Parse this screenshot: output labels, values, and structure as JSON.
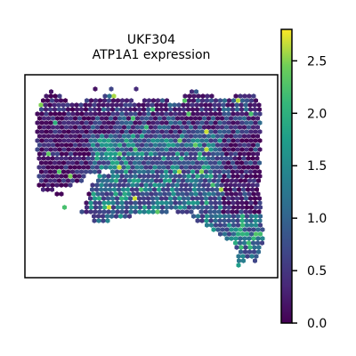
{
  "chart_data": {
    "type": "scatter",
    "title_lines": [
      "UKF304",
      "ATP1A1 expression"
    ],
    "xlabel": "",
    "ylabel": "",
    "axes_ticks": false,
    "grid": false,
    "marker": "hexagon",
    "colormap": "viridis",
    "colors": {
      "low": "#440154",
      "mid": "#21918c",
      "high": "#fde725",
      "frame": "#000000"
    },
    "colorbar": {
      "min": 0.0,
      "max": 2.8,
      "ticks": [
        {
          "value": 0.0,
          "label": "0.0"
        },
        {
          "value": 0.5,
          "label": "0.5"
        },
        {
          "value": 1.0,
          "label": "1.0"
        },
        {
          "value": 1.5,
          "label": "1.5"
        },
        {
          "value": 2.0,
          "label": "2.0"
        },
        {
          "value": 2.5,
          "label": "2.5"
        }
      ]
    },
    "spot_region": {
      "description_rows": "tissue spots on hex grid; each row lists x-span of spots",
      "rows": [
        {
          "y": 100,
          "xs": [
            [
              107,
              107
            ],
            [
              125,
              127
            ],
            [
              153,
              155
            ]
          ]
        },
        {
          "y": 103,
          "xs": [
            [
              55,
              62
            ],
            [
              137,
              139
            ],
            [
              213,
              222
            ]
          ]
        },
        {
          "y": 108,
          "xs": [
            [
              52,
              68
            ],
            [
              118,
              132
            ],
            [
              208,
              238
            ],
            [
              265,
              285
            ]
          ]
        },
        {
          "y": 113,
          "xs": [
            [
              46,
              74
            ],
            [
              95,
              150
            ],
            [
              160,
              190
            ],
            [
              205,
              290
            ]
          ]
        },
        {
          "y": 118,
          "xs": [
            [
              46,
              295
            ]
          ]
        },
        {
          "y": 123,
          "xs": [
            [
              44,
              293
            ]
          ]
        },
        {
          "y": 128,
          "xs": [
            [
              42,
              293
            ]
          ]
        },
        {
          "y": 133,
          "xs": [
            [
              42,
              293
            ]
          ]
        },
        {
          "y": 138,
          "xs": [
            [
              42,
              293
            ]
          ]
        },
        {
          "y": 143,
          "xs": [
            [
              42,
              293
            ]
          ]
        },
        {
          "y": 148,
          "xs": [
            [
              42,
              293
            ]
          ]
        },
        {
          "y": 153,
          "xs": [
            [
              42,
              293
            ]
          ]
        },
        {
          "y": 158,
          "xs": [
            [
              42,
              293
            ]
          ]
        },
        {
          "y": 163,
          "xs": [
            [
              42,
              293
            ]
          ]
        },
        {
          "y": 168,
          "xs": [
            [
              42,
              293
            ]
          ]
        },
        {
          "y": 173,
          "xs": [
            [
              42,
              293
            ]
          ]
        },
        {
          "y": 178,
          "xs": [
            [
              44,
              293
            ]
          ]
        },
        {
          "y": 183,
          "xs": [
            [
              44,
              293
            ]
          ]
        },
        {
          "y": 188,
          "xs": [
            [
              44,
              293
            ]
          ]
        },
        {
          "y": 193,
          "xs": [
            [
              44,
              115
            ],
            [
              124,
              293
            ]
          ]
        },
        {
          "y": 198,
          "xs": [
            [
              44,
              98
            ],
            [
              112,
              293
            ]
          ]
        },
        {
          "y": 203,
          "xs": [
            [
              44,
              95
            ],
            [
              108,
              293
            ]
          ]
        },
        {
          "y": 208,
          "xs": [
            [
              44,
              80
            ],
            [
              104,
              293
            ]
          ]
        },
        {
          "y": 213,
          "xs": [
            [
              46,
              60
            ],
            [
              101,
              293
            ]
          ]
        },
        {
          "y": 218,
          "xs": [
            [
              64,
              72
            ],
            [
              100,
              293
            ]
          ]
        },
        {
          "y": 223,
          "xs": [
            [
              99,
              293
            ]
          ]
        },
        {
          "y": 228,
          "xs": [
            [
              97,
              293
            ]
          ]
        },
        {
          "y": 233,
          "xs": [
            [
              70,
              76
            ],
            [
              95,
              295
            ]
          ]
        },
        {
          "y": 238,
          "xs": [
            [
              92,
              188
            ],
            [
              200,
              215
            ],
            [
              226,
              295
            ]
          ]
        },
        {
          "y": 243,
          "xs": [
            [
              103,
              150
            ],
            [
              215,
              295
            ]
          ]
        },
        {
          "y": 248,
          "xs": [
            [
              106,
              122
            ],
            [
              222,
              295
            ]
          ]
        },
        {
          "y": 253,
          "xs": [
            [
              230,
              295
            ]
          ]
        },
        {
          "y": 258,
          "xs": [
            [
              240,
              295
            ]
          ]
        },
        {
          "y": 263,
          "xs": [
            [
              245,
              295
            ]
          ]
        },
        {
          "y": 268,
          "xs": [
            [
              255,
              295
            ]
          ]
        },
        {
          "y": 273,
          "xs": [
            [
              262,
              295
            ]
          ]
        },
        {
          "y": 278,
          "xs": [
            [
              266,
              295
            ]
          ]
        },
        {
          "y": 283,
          "xs": [
            [
              268,
              292
            ]
          ]
        },
        {
          "y": 288,
          "xs": [
            [
              268,
              290
            ]
          ]
        },
        {
          "y": 293,
          "xs": [
            [
              266,
              278
            ],
            [
              284,
              290
            ]
          ]
        },
        {
          "y": 298,
          "xs": [
            [
              268,
              272
            ]
          ]
        }
      ]
    },
    "expression_zones": [
      {
        "name": "left-dark",
        "value_range": [
          0.0,
          0.6
        ],
        "x": [
          42,
          100
        ],
        "y": [
          100,
          220
        ]
      },
      {
        "name": "top-band",
        "value_range": [
          0.1,
          1.0
        ],
        "x": [
          100,
          295
        ],
        "y": [
          100,
          150
        ]
      },
      {
        "name": "center-mixed",
        "value_range": [
          0.5,
          2.0
        ],
        "x": [
          100,
          250
        ],
        "y": [
          150,
          250
        ]
      },
      {
        "name": "right-dark",
        "value_range": [
          0.0,
          0.8
        ],
        "x": [
          250,
          295
        ],
        "y": [
          150,
          240
        ]
      },
      {
        "name": "lower-right-tail",
        "value_range": [
          0.6,
          2.0
        ],
        "x": [
          220,
          295
        ],
        "y": [
          240,
          300
        ]
      }
    ]
  }
}
